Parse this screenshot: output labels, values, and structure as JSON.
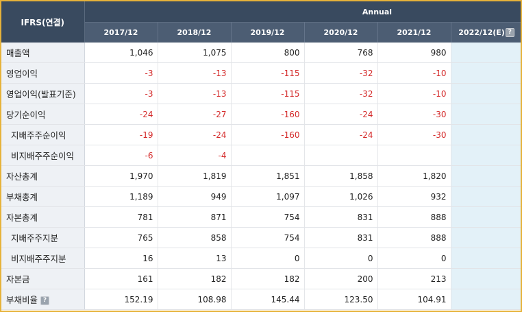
{
  "header": {
    "row_label": "IFRS(연결)",
    "group_label": "Annual",
    "periods": [
      "2017/12",
      "2018/12",
      "2019/12",
      "2020/12",
      "2021/12",
      "2022/12(E)"
    ],
    "help_icon": "question-icon"
  },
  "rows": [
    {
      "label": "매출액",
      "values": [
        "1,046",
        "1,075",
        "800",
        "768",
        "980",
        ""
      ]
    },
    {
      "label": "영업이익",
      "values": [
        "-3",
        "-13",
        "-115",
        "-32",
        "-10",
        ""
      ]
    },
    {
      "label": "영업이익(발표기준)",
      "values": [
        "-3",
        "-13",
        "-115",
        "-32",
        "-10",
        ""
      ]
    },
    {
      "label": "당기순이익",
      "values": [
        "-24",
        "-27",
        "-160",
        "-24",
        "-30",
        ""
      ]
    },
    {
      "label": "지배주주순이익",
      "values": [
        "-19",
        "-24",
        "-160",
        "-24",
        "-30",
        ""
      ]
    },
    {
      "label": "비지배주주순이익",
      "values": [
        "-6",
        "-4",
        "",
        "",
        "",
        ""
      ]
    },
    {
      "label": "자산총계",
      "values": [
        "1,970",
        "1,819",
        "1,851",
        "1,858",
        "1,820",
        ""
      ]
    },
    {
      "label": "부채총계",
      "values": [
        "1,189",
        "949",
        "1,097",
        "1,026",
        "932",
        ""
      ]
    },
    {
      "label": "자본총계",
      "values": [
        "781",
        "871",
        "754",
        "831",
        "888",
        ""
      ]
    },
    {
      "label": "지배주주지분",
      "values": [
        "765",
        "858",
        "754",
        "831",
        "888",
        ""
      ]
    },
    {
      "label": "비지배주주지분",
      "values": [
        "16",
        "13",
        "0",
        "0",
        "0",
        ""
      ]
    },
    {
      "label": "자본금",
      "values": [
        "161",
        "182",
        "182",
        "200",
        "213",
        ""
      ]
    },
    {
      "label": "부채비율",
      "values": [
        "152.19",
        "108.98",
        "145.44",
        "123.50",
        "104.91",
        ""
      ]
    }
  ],
  "colors": {
    "header_bg": "#394a5f",
    "subheader_bg": "#4c5d73",
    "label_bg": "#eef1f5",
    "estimate_bg": "#e3f1f8",
    "negative": "#d42a2a",
    "frame": "#e6b23a"
  }
}
